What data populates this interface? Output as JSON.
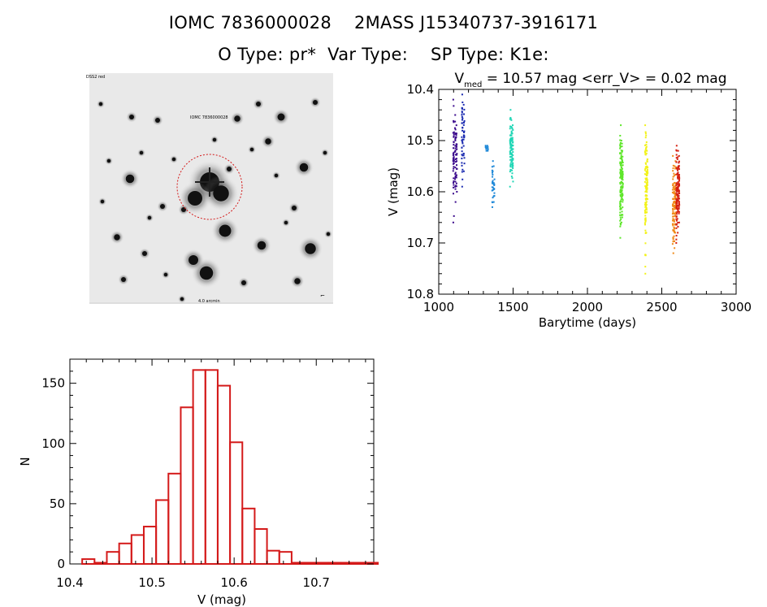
{
  "header": {
    "line1": "IOMC 7836000028    2MASS J15340737-3916171",
    "line2": "O Type: pr*  Var Type:    SP Type: K1e:"
  },
  "image_labels": {
    "top_left": "DSS2 red",
    "target_label": "IOMC 7836000028",
    "bottom_center": "4.0 arcmin"
  },
  "chart_data": [
    {
      "type": "scatter",
      "title_main": "V",
      "title_sub": "med",
      "title_rest": " = 10.57 mag <err_V> = 0.02 mag",
      "xlabel": "Barytime (days)",
      "ylabel": "V (mag)",
      "xlim": [
        1000,
        3000
      ],
      "ylim": [
        10.8,
        10.4
      ],
      "xticks": [
        "1000",
        "1500",
        "2000",
        "2500",
        "3000"
      ],
      "yticks": [
        "10.4",
        "10.5",
        "10.6",
        "10.7",
        "10.8"
      ],
      "series": [
        {
          "name": "s1",
          "color": "#3b0a8c",
          "x": [
            1100,
            1112,
            1120
          ],
          "y_range": [
            [
              10.42,
              10.66
            ],
            [
              10.45,
              10.62
            ],
            [
              10.47,
              10.6
            ]
          ],
          "n": [
            40,
            30,
            25
          ]
        },
        {
          "name": "s2",
          "color": "#1a2ab0",
          "x": [
            1158,
            1170
          ],
          "y_range": [
            [
              10.41,
              10.59
            ],
            [
              10.43,
              10.56
            ]
          ],
          "n": [
            35,
            25
          ]
        },
        {
          "name": "s3",
          "color": "#1e88d8",
          "x": [
            1318,
            1330,
            1362,
            1372
          ],
          "y_range": [
            [
              10.51,
              10.52
            ],
            [
              10.51,
              10.52
            ],
            [
              10.54,
              10.63
            ],
            [
              10.55,
              10.62
            ]
          ],
          "n": [
            6,
            6,
            20,
            15
          ]
        },
        {
          "name": "s4",
          "color": "#21d6b6",
          "x": [
            1482,
            1490,
            1497
          ],
          "y_range": [
            [
              10.44,
              10.59
            ],
            [
              10.46,
              10.57
            ],
            [
              10.47,
              10.58
            ]
          ],
          "n": [
            40,
            35,
            30
          ]
        },
        {
          "name": "s5",
          "color": "#5ee62a",
          "x": [
            2222,
            2230,
            2236
          ],
          "y_range": [
            [
              10.47,
              10.69
            ],
            [
              10.5,
              10.66
            ],
            [
              10.52,
              10.65
            ]
          ],
          "n": [
            60,
            50,
            40
          ]
        },
        {
          "name": "s6",
          "color": "#f2f21a",
          "x": [
            2390,
            2396,
            2402
          ],
          "y_range": [
            [
              10.47,
              10.76
            ],
            [
              10.49,
              10.68
            ],
            [
              10.52,
              10.64
            ]
          ],
          "n": [
            55,
            45,
            35
          ]
        },
        {
          "name": "s7",
          "color": "#f08a1a",
          "x": [
            2576,
            2584,
            2592
          ],
          "y_range": [
            [
              10.53,
              10.72
            ],
            [
              10.55,
              10.71
            ],
            [
              10.54,
              10.68
            ]
          ],
          "n": [
            45,
            40,
            35
          ]
        },
        {
          "name": "s8",
          "color": "#d62010",
          "x": [
            2600,
            2608,
            2616
          ],
          "y_range": [
            [
              10.51,
              10.7
            ],
            [
              10.52,
              10.68
            ],
            [
              10.53,
              10.66
            ]
          ],
          "n": [
            55,
            50,
            45
          ]
        }
      ]
    },
    {
      "type": "bar",
      "xlabel": "V (mag)",
      "ylabel": "N",
      "xlim": [
        10.4,
        10.77
      ],
      "ylim": [
        0,
        170
      ],
      "xticks": [
        "10.4",
        "10.5",
        "10.6",
        "10.7"
      ],
      "yticks": [
        "0",
        "50",
        "100",
        "150"
      ],
      "bar_color": "#d41a1a",
      "bin_start": 10.415,
      "bin_width": 0.015,
      "values": [
        4,
        1,
        10,
        17,
        24,
        31,
        53,
        75,
        130,
        161,
        161,
        148,
        101,
        46,
        29,
        11,
        10,
        1,
        1,
        1,
        1,
        1,
        1,
        1
      ]
    }
  ]
}
